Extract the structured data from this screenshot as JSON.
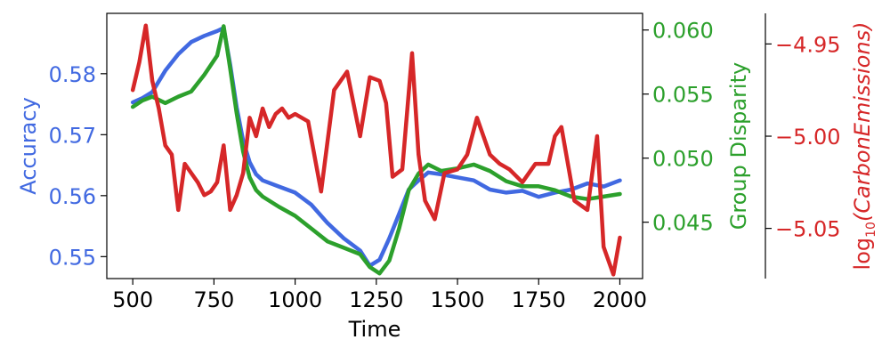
{
  "chart_data": {
    "type": "line",
    "xlabel": "Time",
    "x_ticks": [
      "500",
      "750",
      "1000",
      "1250",
      "1500",
      "1750",
      "2000"
    ],
    "xlim": [
      420,
      2070
    ],
    "axes": {
      "left": {
        "label": "Accuracy",
        "color": "#4169e1",
        "ticks": [
          "0.58",
          "0.57",
          "0.56",
          "0.55"
        ],
        "ylim": [
          0.5464,
          0.5899
        ]
      },
      "right": {
        "label": "Group Disparity",
        "color": "#2ca02c",
        "ticks": [
          "0.060",
          "0.055",
          "0.050",
          "0.045"
        ],
        "ylim": [
          0.0406,
          0.0613
        ]
      },
      "far_right": {
        "label_base": "log",
        "label_sub": "10",
        "label_arg": "(CarbonEmissions)",
        "color": "#d62728",
        "ticks": [
          "−4.95",
          "−5.00",
          "−5.05"
        ],
        "ylim": [
          -5.0772,
          -4.9334
        ]
      }
    },
    "series": [
      {
        "axis": "left",
        "color": "#4169e1",
        "x": [
          500,
          530,
          560,
          600,
          640,
          680,
          720,
          760,
          780,
          800,
          820,
          840,
          860,
          880,
          900,
          950,
          1000,
          1050,
          1100,
          1150,
          1200,
          1230,
          1260,
          1290,
          1320,
          1350,
          1380,
          1410,
          1450,
          1500,
          1550,
          1600,
          1650,
          1700,
          1750,
          1800,
          1850,
          1900,
          1950,
          2000
        ],
        "y": [
          0.5753,
          0.576,
          0.577,
          0.5805,
          0.5832,
          0.5852,
          0.5862,
          0.587,
          0.5875,
          0.5815,
          0.5745,
          0.569,
          0.5655,
          0.5635,
          0.5625,
          0.5615,
          0.5605,
          0.5585,
          0.5555,
          0.553,
          0.551,
          0.5485,
          0.5495,
          0.553,
          0.557,
          0.561,
          0.5625,
          0.5638,
          0.5635,
          0.563,
          0.5625,
          0.561,
          0.5605,
          0.5608,
          0.5598,
          0.5605,
          0.561,
          0.562,
          0.5615,
          0.5625
        ]
      },
      {
        "axis": "right",
        "color": "#2ca02c",
        "x": [
          500,
          530,
          560,
          600,
          640,
          680,
          720,
          760,
          780,
          800,
          820,
          840,
          860,
          880,
          900,
          950,
          1000,
          1050,
          1100,
          1150,
          1200,
          1230,
          1260,
          1290,
          1320,
          1350,
          1380,
          1410,
          1450,
          1500,
          1550,
          1600,
          1650,
          1700,
          1750,
          1800,
          1850,
          1900,
          1950,
          2000
        ],
        "y": [
          0.054,
          0.0545,
          0.0548,
          0.0543,
          0.0548,
          0.0552,
          0.0565,
          0.058,
          0.0603,
          0.057,
          0.0535,
          0.0505,
          0.0485,
          0.0475,
          0.047,
          0.0462,
          0.0455,
          0.0445,
          0.0435,
          0.043,
          0.0425,
          0.0415,
          0.041,
          0.042,
          0.0445,
          0.0475,
          0.0488,
          0.0495,
          0.049,
          0.0492,
          0.0495,
          0.049,
          0.0482,
          0.0478,
          0.0478,
          0.0475,
          0.047,
          0.0468,
          0.047,
          0.0472
        ]
      },
      {
        "axis": "far_right",
        "color": "#d62728",
        "x": [
          500,
          520,
          540,
          560,
          580,
          600,
          620,
          640,
          660,
          680,
          700,
          720,
          740,
          760,
          780,
          800,
          820,
          840,
          860,
          880,
          900,
          920,
          940,
          960,
          980,
          1000,
          1040,
          1080,
          1120,
          1160,
          1200,
          1230,
          1260,
          1280,
          1300,
          1330,
          1360,
          1380,
          1400,
          1430,
          1460,
          1500,
          1530,
          1560,
          1600,
          1630,
          1660,
          1700,
          1740,
          1780,
          1800,
          1820,
          1860,
          1900,
          1930,
          1950,
          1980,
          2000
        ],
        "y": [
          -4.975,
          -4.96,
          -4.94,
          -4.97,
          -4.985,
          -5.005,
          -5.01,
          -5.04,
          -5.015,
          -5.02,
          -5.025,
          -5.032,
          -5.03,
          -5.025,
          -5.005,
          -5.04,
          -5.032,
          -5.02,
          -4.99,
          -5.0,
          -4.985,
          -4.995,
          -4.988,
          -4.985,
          -4.99,
          -4.988,
          -4.992,
          -5.03,
          -4.975,
          -4.965,
          -5.0,
          -4.968,
          -4.97,
          -4.982,
          -5.022,
          -5.018,
          -4.955,
          -5.01,
          -5.035,
          -5.045,
          -5.02,
          -5.018,
          -5.01,
          -4.99,
          -5.01,
          -5.015,
          -5.018,
          -5.025,
          -5.015,
          -5.015,
          -5.0,
          -4.995,
          -5.035,
          -5.04,
          -5.0,
          -5.06,
          -5.075,
          -5.055
        ]
      }
    ]
  }
}
